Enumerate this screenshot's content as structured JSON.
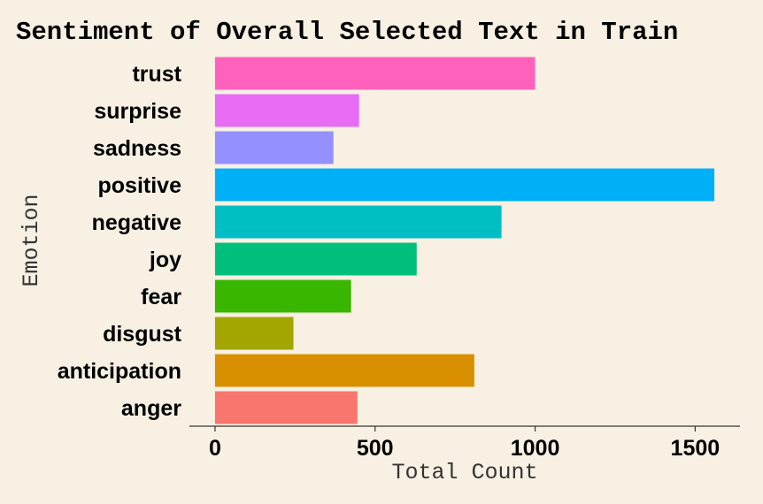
{
  "chart_data": {
    "type": "bar",
    "orientation": "horizontal",
    "title": "Sentiment of Overall Selected Text in Train",
    "xlabel": "Total Count",
    "ylabel": "Emotion",
    "categories": [
      "anger",
      "anticipation",
      "disgust",
      "fear",
      "joy",
      "negative",
      "positive",
      "sadness",
      "surprise",
      "trust"
    ],
    "values": [
      445,
      810,
      245,
      425,
      630,
      895,
      1560,
      370,
      450,
      1000
    ],
    "colors": [
      "#F8766D",
      "#D89000",
      "#A3A500",
      "#39B600",
      "#00BF7D",
      "#00BFC4",
      "#00B0F6",
      "#9590FF",
      "#E76BF3",
      "#FF62BC"
    ],
    "xticks": [
      0,
      500,
      1000,
      1500
    ],
    "xtick_labels": [
      "0",
      "500",
      "1000",
      "1500"
    ],
    "xlim": [
      -80,
      1640
    ],
    "grid": false,
    "legend": "none"
  }
}
